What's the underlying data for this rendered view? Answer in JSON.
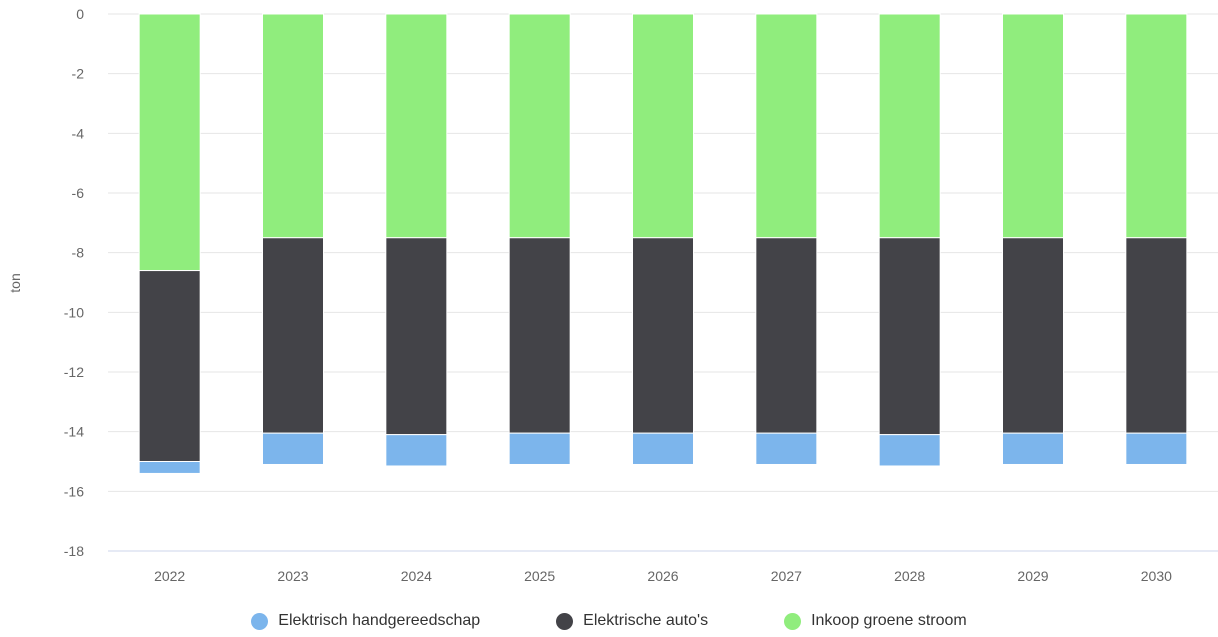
{
  "chart_data": {
    "type": "bar",
    "stacked": true,
    "ylabel": "ton",
    "ylim": [
      -18,
      0
    ],
    "yticks": [
      0,
      -2,
      -4,
      -6,
      -8,
      -10,
      -12,
      -14,
      -16,
      -18
    ],
    "grid": true,
    "legend_position": "bottom",
    "categories": [
      "2022",
      "2023",
      "2024",
      "2025",
      "2026",
      "2027",
      "2028",
      "2029",
      "2030"
    ],
    "series": [
      {
        "name": "Inkoop groene stroom",
        "color": "#90ed7d",
        "values": [
          -8.6,
          -7.5,
          -7.5,
          -7.5,
          -7.5,
          -7.5,
          -7.5,
          -7.5,
          -7.5
        ]
      },
      {
        "name": "Elektrische auto's",
        "color": "#434348",
        "values": [
          -6.4,
          -6.55,
          -6.6,
          -6.55,
          -6.55,
          -6.55,
          -6.6,
          -6.55,
          -6.55
        ]
      },
      {
        "name": "Elektrisch handgereedschap",
        "color": "#7cb5ec",
        "values": [
          -0.4,
          -1.05,
          -1.05,
          -1.05,
          -1.05,
          -1.05,
          -1.05,
          -1.05,
          -1.05
        ]
      }
    ],
    "legend": [
      {
        "name": "Elektrisch handgereedschap",
        "color": "#7cb5ec"
      },
      {
        "name": "Elektrische auto's",
        "color": "#434348"
      },
      {
        "name": "Inkoop groene stroom",
        "color": "#90ed7d"
      }
    ]
  }
}
